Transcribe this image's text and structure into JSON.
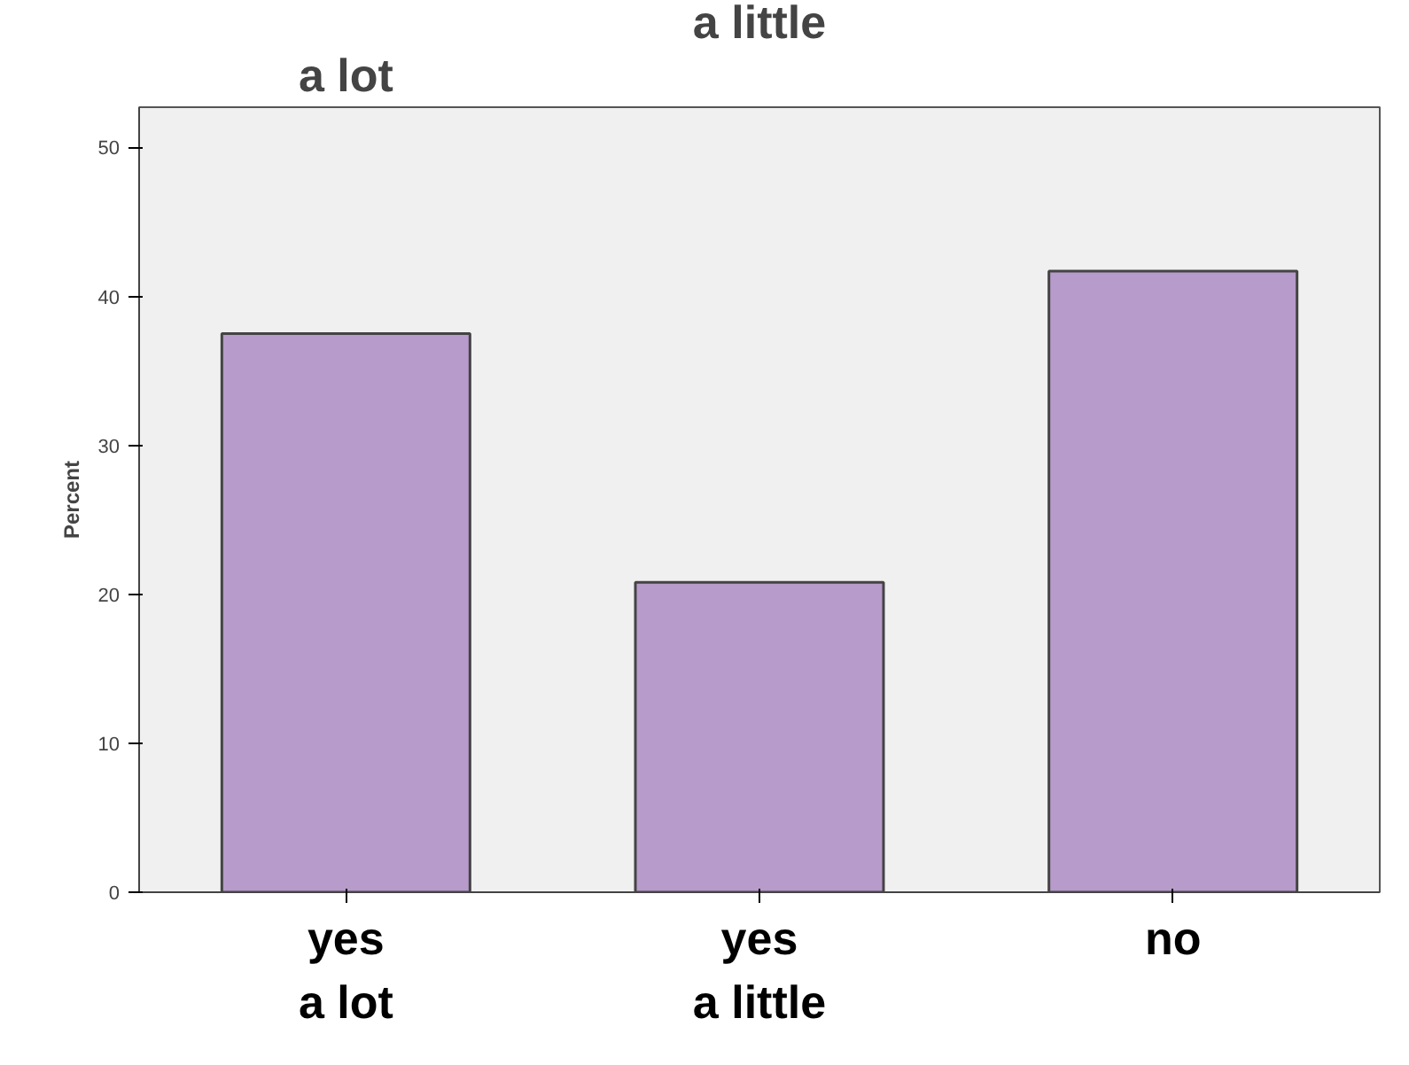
{
  "chart_data": {
    "type": "bar",
    "ylabel": "Percent",
    "categories": [
      "yes\na lot",
      "yes\na little",
      "no"
    ],
    "values": [
      37.5,
      20.8,
      41.7
    ],
    "color": "#b79bca",
    "ylim": [
      0,
      52.7
    ],
    "yticks": [
      0,
      10,
      20,
      30,
      40,
      50
    ],
    "grid": false,
    "annotations": [
      "a lot",
      "a little"
    ]
  }
}
